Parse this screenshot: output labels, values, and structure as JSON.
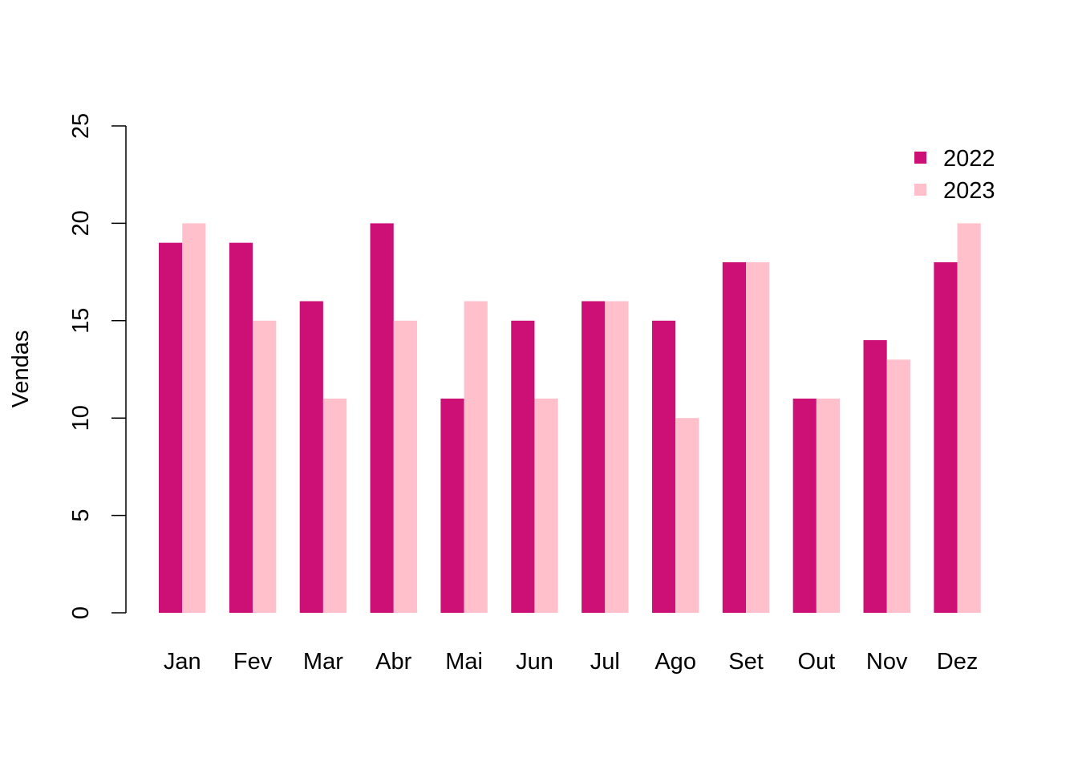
{
  "chart_data": {
    "type": "bar",
    "title": "",
    "xlabel": "",
    "ylabel": "Vendas",
    "ylim": [
      0,
      25
    ],
    "yticks": [
      "0",
      "5",
      "10",
      "15",
      "20",
      "25"
    ],
    "categories": [
      "Jan",
      "Fev",
      "Mar",
      "Abr",
      "Mai",
      "Jun",
      "Jul",
      "Ago",
      "Set",
      "Out",
      "Nov",
      "Dez"
    ],
    "series": [
      {
        "name": "2022",
        "color": "#CD1076",
        "values": [
          19,
          19,
          16,
          20,
          11,
          15,
          16,
          15,
          18,
          11,
          14,
          18
        ]
      },
      {
        "name": "2023",
        "color": "#FFC0CB",
        "values": [
          20,
          15,
          11,
          15,
          16,
          11,
          16,
          10,
          18,
          11,
          13,
          20
        ]
      }
    ],
    "grid": false,
    "legend": "top-right"
  }
}
